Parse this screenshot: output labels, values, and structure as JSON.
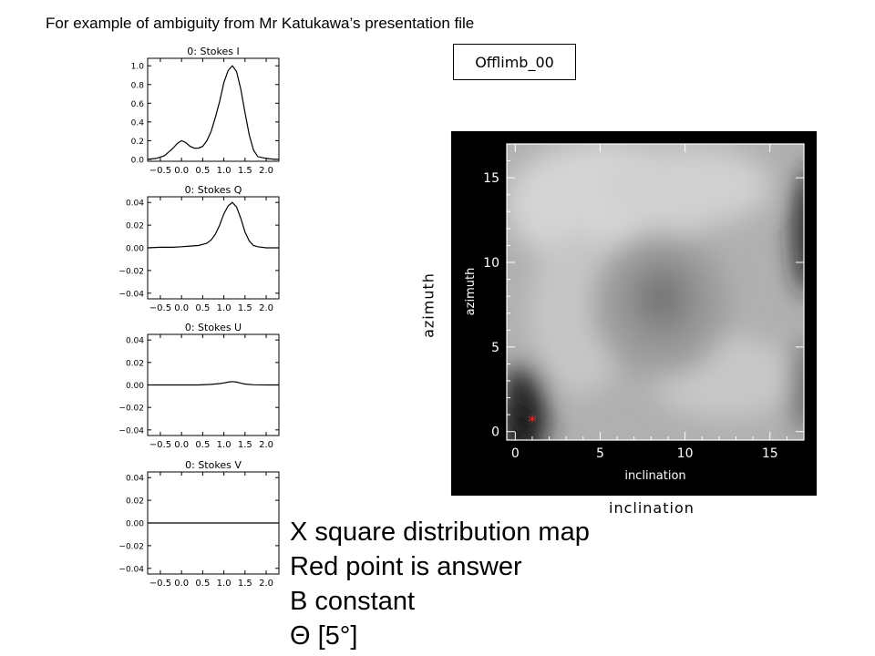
{
  "header": {
    "title": "For example of ambiguity from Mr Katukawa’s presentation file"
  },
  "label_box": {
    "text": "Offlimb_00"
  },
  "side_labels": {
    "azimuth": "azimuth",
    "inclination": "inclination"
  },
  "notes": [
    "X square distribution map",
    "Red point is answer",
    "B constant",
    "Θ [5°]"
  ],
  "chart_data": [
    {
      "type": "line",
      "title": "0: Stokes I",
      "xlim": [
        -0.8,
        2.3
      ],
      "ylim": [
        -0.02,
        1.08
      ],
      "xticks": [
        "-0.5",
        "0.0",
        "0.5",
        "1.0",
        "1.5",
        "2.0"
      ],
      "xtick_values": [
        -0.5,
        0,
        0.5,
        1,
        1.5,
        2
      ],
      "yticks": [
        "0.0",
        "0.2",
        "0.4",
        "0.6",
        "0.8",
        "1.0"
      ],
      "ytick_values": [
        0,
        0.2,
        0.4,
        0.6,
        0.8,
        1.0
      ],
      "series": [
        {
          "x": [
            -0.8,
            -0.6,
            -0.4,
            -0.2,
            -0.1,
            0.0,
            0.1,
            0.2,
            0.3,
            0.4,
            0.5,
            0.6,
            0.7,
            0.8,
            0.9,
            1.0,
            1.1,
            1.2,
            1.3,
            1.4,
            1.5,
            1.6,
            1.7,
            1.8,
            2.0,
            2.2,
            2.3
          ],
          "y": [
            0.0,
            0.01,
            0.04,
            0.12,
            0.17,
            0.2,
            0.18,
            0.14,
            0.12,
            0.12,
            0.14,
            0.2,
            0.3,
            0.45,
            0.62,
            0.82,
            0.95,
            1.0,
            0.94,
            0.75,
            0.5,
            0.26,
            0.1,
            0.03,
            0.01,
            0.0,
            0.0
          ]
        }
      ]
    },
    {
      "type": "line",
      "title": "0: Stokes Q",
      "xlim": [
        -0.8,
        2.3
      ],
      "ylim": [
        -0.045,
        0.045
      ],
      "xticks": [
        "-0.5",
        "0.0",
        "0.5",
        "1.0",
        "1.5",
        "2.0"
      ],
      "xtick_values": [
        -0.5,
        0,
        0.5,
        1,
        1.5,
        2
      ],
      "yticks": [
        "0.04",
        "0.02",
        "0.00",
        "-0.02",
        "-0.04"
      ],
      "ytick_values": [
        0.04,
        0.02,
        0,
        -0.02,
        -0.04
      ],
      "series": [
        {
          "x": [
            -0.8,
            -0.5,
            -0.2,
            0.0,
            0.2,
            0.4,
            0.6,
            0.7,
            0.8,
            0.9,
            1.0,
            1.1,
            1.2,
            1.3,
            1.4,
            1.5,
            1.6,
            1.7,
            1.8,
            2.0,
            2.3
          ],
          "y": [
            0.0,
            0.0005,
            0.0005,
            0.001,
            0.0015,
            0.002,
            0.004,
            0.007,
            0.012,
            0.02,
            0.03,
            0.037,
            0.04,
            0.036,
            0.026,
            0.014,
            0.006,
            0.002,
            0.001,
            0.0,
            0.0
          ]
        }
      ]
    },
    {
      "type": "line",
      "title": "0: Stokes U",
      "xlim": [
        -0.8,
        2.3
      ],
      "ylim": [
        -0.045,
        0.045
      ],
      "xticks": [
        "-0.5",
        "0.0",
        "0.5",
        "1.0",
        "1.5",
        "2.0"
      ],
      "xtick_values": [
        -0.5,
        0,
        0.5,
        1,
        1.5,
        2
      ],
      "yticks": [
        "0.04",
        "0.02",
        "0.00",
        "-0.02",
        "-0.04"
      ],
      "ytick_values": [
        0.04,
        0.02,
        0,
        -0.02,
        -0.04
      ],
      "series": [
        {
          "x": [
            -0.8,
            0.4,
            0.7,
            0.9,
            1.0,
            1.1,
            1.2,
            1.3,
            1.4,
            1.5,
            1.7,
            2.0,
            2.3
          ],
          "y": [
            0.0,
            0.0,
            0.0005,
            0.0012,
            0.0018,
            0.0025,
            0.003,
            0.0025,
            0.0015,
            0.0008,
            0.0002,
            0.0,
            0.0
          ]
        }
      ]
    },
    {
      "type": "line",
      "title": "0: Stokes V",
      "xlim": [
        -0.8,
        2.3
      ],
      "ylim": [
        -0.045,
        0.045
      ],
      "xticks": [
        "-0.5",
        "0.0",
        "0.5",
        "1.0",
        "1.5",
        "2.0"
      ],
      "xtick_values": [
        -0.5,
        0,
        0.5,
        1,
        1.5,
        2
      ],
      "yticks": [
        "0.04",
        "0.02",
        "0.00",
        "-0.02",
        "-0.04"
      ],
      "ytick_values": [
        0.04,
        0.02,
        0,
        -0.02,
        -0.04
      ],
      "series": [
        {
          "x": [
            -0.8,
            2.3
          ],
          "y": [
            0.0,
            0.0
          ]
        }
      ]
    },
    {
      "type": "heatmap",
      "xlabel": "inclination",
      "ylabel": "azimuth",
      "xlim": [
        -0.5,
        17
      ],
      "ylim": [
        -0.5,
        17
      ],
      "xticks": [
        "0",
        "5",
        "10",
        "15"
      ],
      "xtick_values": [
        0,
        5,
        10,
        15
      ],
      "yticks": [
        "0",
        "5",
        "10",
        "15"
      ],
      "ytick_values": [
        0,
        5,
        10,
        15
      ],
      "marker": {
        "x": 1,
        "y": 0.7,
        "color": "#ff2020",
        "symbol": "*"
      },
      "colors": {
        "background": "#000000",
        "axes": "#ffffff"
      }
    }
  ]
}
